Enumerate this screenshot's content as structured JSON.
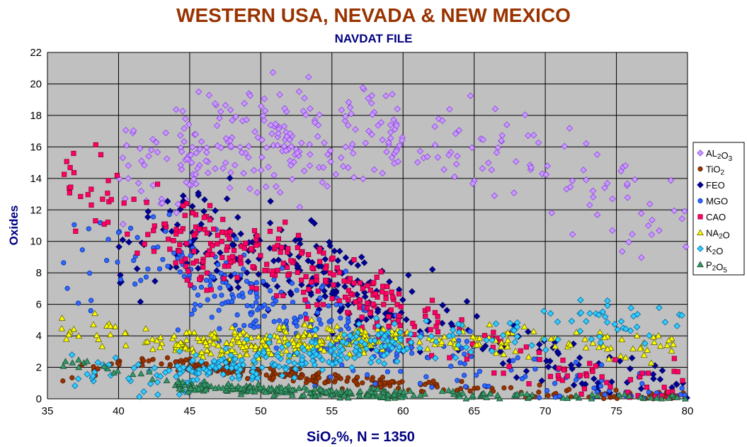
{
  "chart_data": {
    "type": "scatter",
    "title": "WESTERN USA, NEVADA & NEW MEXICO",
    "subtitle": "NAVDAT FILE",
    "xlabel_main": "SiO",
    "xlabel_sub": "2",
    "xlabel_rest": "%,  N = 1350",
    "ylabel": "Oxides",
    "xlim": [
      35,
      80
    ],
    "ylim": [
      0,
      22
    ],
    "x_ticks": [
      "35",
      "40",
      "45",
      "50",
      "55",
      "60",
      "65",
      "70",
      "75",
      "80"
    ],
    "y_ticks": [
      "0",
      "2",
      "4",
      "6",
      "8",
      "10",
      "12",
      "14",
      "16",
      "18",
      "20",
      "22"
    ],
    "grid": true,
    "legend_position": "right",
    "plot_background": "#c0c0c0",
    "legend": [
      {
        "main": "AL",
        "sub": "2",
        "main2": "O",
        "sub2": "3",
        "marker": "diamond",
        "fill": "#cc99ff",
        "stroke": "#8844dd"
      },
      {
        "main": "TiO",
        "sub": "2",
        "main2": "",
        "sub2": "",
        "marker": "circle",
        "fill": "#993300",
        "stroke": "#5a1e00"
      },
      {
        "main": "FEO",
        "sub": "",
        "main2": "",
        "sub2": "",
        "marker": "diamond",
        "fill": "#000099",
        "stroke": "#000066"
      },
      {
        "main": "MGO",
        "sub": "",
        "main2": "",
        "sub2": "",
        "marker": "circle",
        "fill": "#3366ff",
        "stroke": "#0033aa"
      },
      {
        "main": "CAO",
        "sub": "",
        "main2": "",
        "sub2": "",
        "marker": "square",
        "fill": "#ff0066",
        "stroke": "#990033"
      },
      {
        "main": "NA",
        "sub": "2",
        "main2": "O",
        "sub2": "",
        "marker": "triangle",
        "fill": "#ffff00",
        "stroke": "#666600"
      },
      {
        "main": "K",
        "sub": "2",
        "main2": "O",
        "sub2": "",
        "marker": "diamond",
        "fill": "#33ccff",
        "stroke": "#006699"
      },
      {
        "main": "P",
        "sub": "2",
        "main2": "O",
        "sub2": "5",
        "marker": "triangle",
        "fill": "#339966",
        "stroke": "#1a4d33"
      }
    ],
    "series_trends": [
      {
        "name_ref": 0,
        "x": [
          40,
          45,
          50,
          55,
          60,
          65,
          70,
          75,
          80
        ],
        "y": [
          14.5,
          15.5,
          16.5,
          16.5,
          16.8,
          16,
          14.8,
          12.8,
          11
        ],
        "spread": 1.3,
        "n": 330
      },
      {
        "name_ref": 1,
        "x": [
          36,
          42,
          45,
          50,
          55,
          60,
          65,
          70,
          75,
          80
        ],
        "y": [
          1.5,
          2.5,
          2.0,
          1.7,
          1.2,
          0.9,
          0.6,
          0.35,
          0.2,
          0.1
        ],
        "spread": 0.4,
        "n": 250
      },
      {
        "name_ref": 2,
        "x": [
          40,
          45,
          50,
          55,
          60,
          65,
          70,
          75,
          80
        ],
        "y": [
          8.5,
          10.5,
          9.5,
          7.5,
          5.5,
          4,
          2.5,
          1.6,
          1
        ],
        "spread": 1.6,
        "n": 280
      },
      {
        "name_ref": 3,
        "x": [
          36,
          42,
          45,
          50,
          55,
          60,
          65,
          70,
          75,
          80
        ],
        "y": [
          9,
          9,
          8,
          6,
          4.5,
          3,
          2,
          1,
          0.5,
          0.3
        ],
        "spread": 1.8,
        "n": 320
      },
      {
        "name_ref": 4,
        "x": [
          36,
          40,
          45,
          50,
          55,
          60,
          65,
          70,
          75,
          80
        ],
        "y": [
          15,
          12,
          9.5,
          9,
          7.5,
          5.5,
          3.5,
          2,
          1,
          0.6
        ],
        "spread": 1.3,
        "n": 340
      },
      {
        "name_ref": 5,
        "x": [
          36,
          40,
          45,
          50,
          55,
          60,
          65,
          70,
          75,
          80
        ],
        "y": [
          4.5,
          4,
          3.5,
          3.5,
          3.7,
          3.9,
          3.9,
          3.7,
          3.5,
          3.2
        ],
        "spread": 0.7,
        "n": 340
      },
      {
        "name_ref": 6,
        "x": [
          36,
          42,
          45,
          50,
          55,
          60,
          65,
          70,
          75,
          80
        ],
        "y": [
          1.5,
          1.5,
          1.5,
          2.5,
          3,
          3.5,
          4,
          4.5,
          4.8,
          4.8
        ],
        "spread": 1.0,
        "n": 300
      },
      {
        "name_ref": 7,
        "x": [
          36,
          42,
          45,
          50,
          55,
          60,
          65,
          70,
          75,
          80
        ],
        "y": [
          2.2,
          1.5,
          0.7,
          0.6,
          0.4,
          0.3,
          0.2,
          0.1,
          0.07,
          0.05
        ],
        "spread": 0.3,
        "n": 260
      }
    ]
  }
}
